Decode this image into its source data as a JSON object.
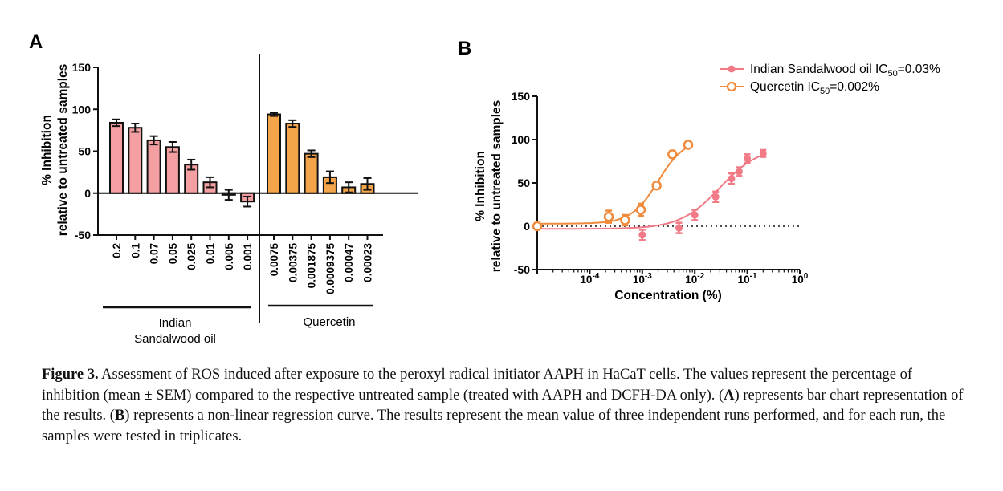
{
  "panel_a": {
    "label": "A",
    "ylabel_line1": "% Inhibition",
    "ylabel_line2": "relative to untreated samples",
    "group1_line1": "Indian",
    "group1_line2": "Sandalwood oil",
    "group2": "Quercetin"
  },
  "panel_b": {
    "label": "B",
    "ylabel_line1": "% Inhibition",
    "ylabel_line2": "relative to untreated samples",
    "xlabel": "Concentration (%)",
    "legend": [
      {
        "prefix": "Indian Sandalwood oil IC",
        "sub": "50",
        "suffix": "=0.03%"
      },
      {
        "prefix": "Quercetin IC",
        "sub": "50",
        "suffix": "=0.002%"
      }
    ]
  },
  "caption": {
    "fig_label": "Figure 3.",
    "sentence1": " Assessment of ROS induced after exposure to the peroxyl radical initiator AAPH in HaCaT cells. The values represent the percentage of inhibition (mean ± SEM) compared to the respective untreated sample (treated with AAPH and DCFH-DA only). (",
    "a_ref": "A",
    "sentence2": ") represents bar chart representation of the results. (",
    "b_ref": "B",
    "sentence3": ") represents a non-linear regression curve. The results represent the mean value of three independent runs performed, and for each run, the samples were tested in triplicates."
  },
  "colors": {
    "sandalwood": "#f4a0a3",
    "sandalwood_marker": "#f07b87",
    "quercetin": "#f4a54a",
    "quercetin_marker": "#f08a3c"
  },
  "chart_data": [
    {
      "type": "bar",
      "panel": "A",
      "ylabel": "% Inhibition relative to untreated samples",
      "ylim": [
        -50,
        150
      ],
      "yticks": [
        "-50",
        "0",
        "50",
        "100",
        "150"
      ],
      "series": [
        {
          "name": "Indian Sandalwood oil",
          "categories": [
            "0.2",
            "0.1",
            "0.07",
            "0.05",
            "0.025",
            "0.01",
            "0.005",
            "0.001"
          ],
          "values": [
            84,
            78,
            63,
            55,
            34,
            13,
            -2,
            -10
          ],
          "errors": [
            4,
            5,
            5,
            6,
            6,
            6,
            6,
            6
          ]
        },
        {
          "name": "Quercetin",
          "categories": [
            "0.0075",
            "0.00375",
            "0.001875",
            "0.0009375",
            "0.00047",
            "0.00023"
          ],
          "values": [
            94,
            83,
            47,
            19,
            7,
            11
          ],
          "errors": [
            2,
            4,
            4,
            7,
            6,
            7
          ]
        }
      ]
    },
    {
      "type": "scatter",
      "panel": "B",
      "xlabel": "Concentration (%)",
      "ylabel": "% Inhibition relative to untreated samples",
      "xscale": "log",
      "xlim": [
        1e-05,
        1
      ],
      "ylim": [
        -50,
        150
      ],
      "xticks": [
        {
          "base": "10",
          "exp": "-4"
        },
        {
          "base": "10",
          "exp": "-3"
        },
        {
          "base": "10",
          "exp": "-2"
        },
        {
          "base": "10",
          "exp": "-1"
        },
        {
          "base": "10",
          "exp": "0"
        }
      ],
      "yticks": [
        "-50",
        "0",
        "50",
        "100",
        "150"
      ],
      "reference_line": 0,
      "series": [
        {
          "name": "Indian Sandalwood oil IC50=0.03%",
          "x": [
            1e-05,
            0.001,
            0.005,
            0.01,
            0.025,
            0.05,
            0.07,
            0.1,
            0.2
          ],
          "y": [
            0,
            -10,
            -2,
            13,
            34,
            55,
            63,
            78,
            84
          ],
          "errors": [
            0,
            6,
            6,
            6,
            6,
            6,
            5,
            5,
            4
          ],
          "ic50": 0.03
        },
        {
          "name": "Quercetin IC50=0.002%",
          "x": [
            1e-05,
            0.00023,
            0.00047,
            0.0009375,
            0.001875,
            0.00375,
            0.0075
          ],
          "y": [
            0,
            11,
            7,
            19,
            47,
            83,
            94
          ],
          "errors": [
            0,
            7,
            6,
            7,
            4,
            4,
            2
          ],
          "ic50": 0.002
        }
      ]
    }
  ]
}
